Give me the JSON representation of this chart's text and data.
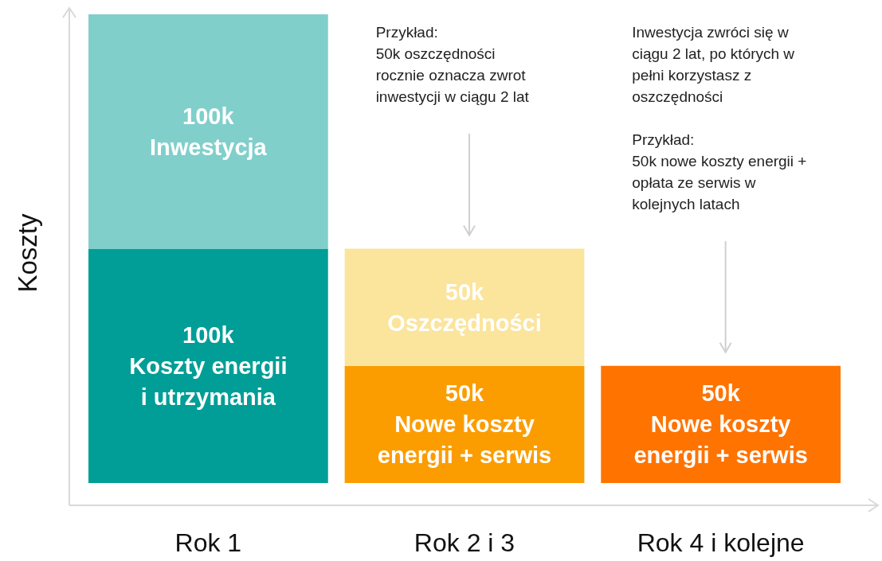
{
  "chart_data": {
    "type": "bar",
    "stacked": true,
    "ylabel": "Koszty",
    "categories": [
      "Rok 1",
      "Rok 2 i 3",
      "Rok 4 i kolejne"
    ],
    "series": [
      {
        "values": [
          100,
          50,
          50
        ],
        "colors": [
          "#009e96",
          "#fb9d00",
          "#ff7300"
        ],
        "value_labels": [
          "100k\nKoszty energii\ni utrzymania",
          "50k\nNowe koszty\nenergii + serwis",
          "50k\nNowe koszty\nenergii + serwis"
        ]
      },
      {
        "values": [
          100,
          50,
          null
        ],
        "colors": [
          "#80cfcb",
          "#fbe49c",
          null
        ],
        "value_labels": [
          "100k\nInwestycja",
          "50k\nOszczędności",
          null
        ]
      }
    ],
    "annotations": [
      "Przykład:\n50k oszczędności\nrocznie oznacza zwrot\ninwestycji w ciągu 2 lat",
      "Inwestycja zwróci się w\nciągu 2 lat, po których w\npełni korzystasz z\noszczędności\n\nPrzykład:\n50k nowe koszty energii +\nopłata ze serwis w\nkolejnych latach"
    ]
  }
}
